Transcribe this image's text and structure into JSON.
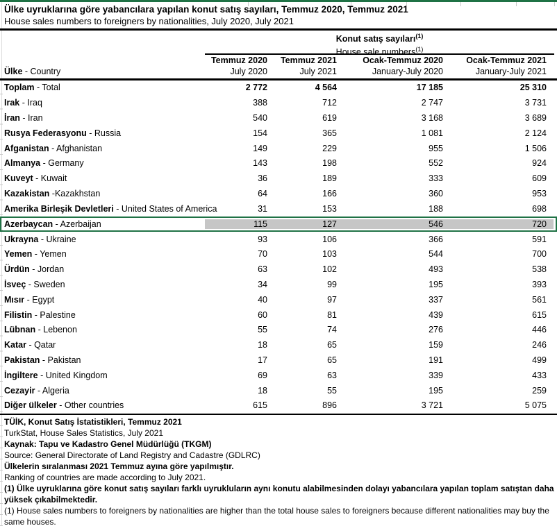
{
  "page": {
    "title": "Ülke uyruklarına göre yabancılara yapılan konut satış sayıları, Temmuz 2020, Temmuz 2021",
    "subtitle": "House sales numbers to foreigners by nationalities, July 2020, July 2021"
  },
  "table": {
    "group_header": {
      "line1": "Konut satış sayıları",
      "line1_sup": "(1)",
      "line2": "House sale numbers",
      "line2_sup": "(1)"
    },
    "country_header": {
      "tr": "Ülke",
      "en": " - Country"
    },
    "columns": [
      {
        "tr": "Temmuz 2020",
        "en": "July 2020"
      },
      {
        "tr": "Temmuz 2021",
        "en": "July 2021"
      },
      {
        "tr": "Ocak-Temmuz 2020",
        "en": "January-July 2020"
      },
      {
        "tr": "Ocak-Temmuz 2021",
        "en": "January-July 2021"
      }
    ],
    "rows": [
      {
        "tr": "Toplam",
        "en": " - Total",
        "values": [
          "2 772",
          "4 564",
          "17 185",
          "25 310"
        ],
        "bold": true,
        "highlight": false
      },
      {
        "tr": "Irak",
        "en": " - Iraq",
        "values": [
          "388",
          "712",
          "2 747",
          "3 731"
        ],
        "bold": false,
        "highlight": false
      },
      {
        "tr": "İran",
        "en": " - Iran",
        "values": [
          "540",
          "619",
          "3 168",
          "3 689"
        ],
        "bold": false,
        "highlight": false
      },
      {
        "tr": "Rusya Federasyonu",
        "en": " - Russia",
        "values": [
          "154",
          "365",
          "1 081",
          "2 124"
        ],
        "bold": false,
        "highlight": false
      },
      {
        "tr": "Afganistan",
        "en": " - Afghanistan",
        "values": [
          "149",
          "229",
          "955",
          "1 506"
        ],
        "bold": false,
        "highlight": false
      },
      {
        "tr": "Almanya",
        "en": " - Germany",
        "values": [
          "143",
          "198",
          "552",
          "924"
        ],
        "bold": false,
        "highlight": false
      },
      {
        "tr": "Kuveyt",
        "en": " - Kuwait",
        "values": [
          "36",
          "189",
          "333",
          "609"
        ],
        "bold": false,
        "highlight": false
      },
      {
        "tr": "Kazakistan",
        "en": " -Kazakhstan",
        "values": [
          "64",
          "166",
          "360",
          "953"
        ],
        "bold": false,
        "highlight": false
      },
      {
        "tr": "Amerika Birleşik Devletleri",
        "en": " - United States of America",
        "values": [
          "31",
          "153",
          "188",
          "698"
        ],
        "bold": false,
        "highlight": false
      },
      {
        "tr": "Azerbaycan",
        "en": " - Azerbaijan",
        "values": [
          "115",
          "127",
          "546",
          "720"
        ],
        "bold": false,
        "highlight": true
      },
      {
        "tr": "Ukrayna",
        "en": " - Ukraine",
        "values": [
          "93",
          "106",
          "366",
          "591"
        ],
        "bold": false,
        "highlight": false
      },
      {
        "tr": "Yemen",
        "en": " - Yemen",
        "values": [
          "70",
          "103",
          "544",
          "700"
        ],
        "bold": false,
        "highlight": false
      },
      {
        "tr": "Ürdün",
        "en": " - Jordan",
        "values": [
          "63",
          "102",
          "493",
          "538"
        ],
        "bold": false,
        "highlight": false
      },
      {
        "tr": "İsveç",
        "en": " - Sweden",
        "values": [
          "34",
          "99",
          "195",
          "393"
        ],
        "bold": false,
        "highlight": false
      },
      {
        "tr": "Mısır",
        "en": " - Egypt",
        "values": [
          "40",
          "97",
          "337",
          "561"
        ],
        "bold": false,
        "highlight": false
      },
      {
        "tr": "Filistin",
        "en": " - Palestine",
        "values": [
          "60",
          "81",
          "439",
          "615"
        ],
        "bold": false,
        "highlight": false
      },
      {
        "tr": "Lübnan",
        "en": " - Lebenon",
        "values": [
          "55",
          "74",
          "276",
          "446"
        ],
        "bold": false,
        "highlight": false
      },
      {
        "tr": "Katar",
        "en": " - Qatar",
        "values": [
          "18",
          "65",
          "159",
          "246"
        ],
        "bold": false,
        "highlight": false
      },
      {
        "tr": "Pakistan",
        "en": " - Pakistan",
        "values": [
          "17",
          "65",
          "191",
          "499"
        ],
        "bold": false,
        "highlight": false
      },
      {
        "tr": "İngiltere",
        "en": " - United Kingdom",
        "values": [
          "69",
          "63",
          "339",
          "433"
        ],
        "bold": false,
        "highlight": false
      },
      {
        "tr": "Cezayir",
        "en": " - Algeria",
        "values": [
          "18",
          "55",
          "195",
          "259"
        ],
        "bold": false,
        "highlight": false
      },
      {
        "tr": "Diğer ülkeler",
        "en": " - Other countries",
        "values": [
          "615",
          "896",
          "3 721",
          "5 075"
        ],
        "bold": false,
        "highlight": false
      }
    ]
  },
  "footnotes": [
    {
      "text": "TÜİK, Konut Satış İstatistikleri, Temmuz 2021",
      "bold": true
    },
    {
      "text": "TurkStat, House Sales Statistics, July 2021",
      "bold": false
    },
    {
      "text": "Kaynak: Tapu ve Kadastro Genel Müdürlüğü (TKGM)",
      "bold": true
    },
    {
      "text": "Source: General Directorate of Land Registry and Cadastre (GDLRC)",
      "bold": false
    },
    {
      "text": "Ülkelerin sıralanması 2021 Temmuz ayına göre yapılmıştır.",
      "bold": true
    },
    {
      "text": "Ranking of countries are made according to July 2021.",
      "bold": false
    },
    {
      "text": "(1) Ülke uyruklarına göre konut satış sayıları farklı uyrukluların aynı konutu alabilmesinden dolayı yabancılara yapılan toplam satıştan daha  yüksek çıkabilmektedir.",
      "bold": true
    },
    {
      "text": "(1) House sales numbers to foreigners by nationalities are higher than the total house sales to foreigners because different nationalities may buy the same houses.",
      "bold": false
    }
  ],
  "colors": {
    "accent_green": "#1f7245",
    "highlight_gray": "#c6c6c6",
    "gridline_gray": "#c9c9c9"
  }
}
